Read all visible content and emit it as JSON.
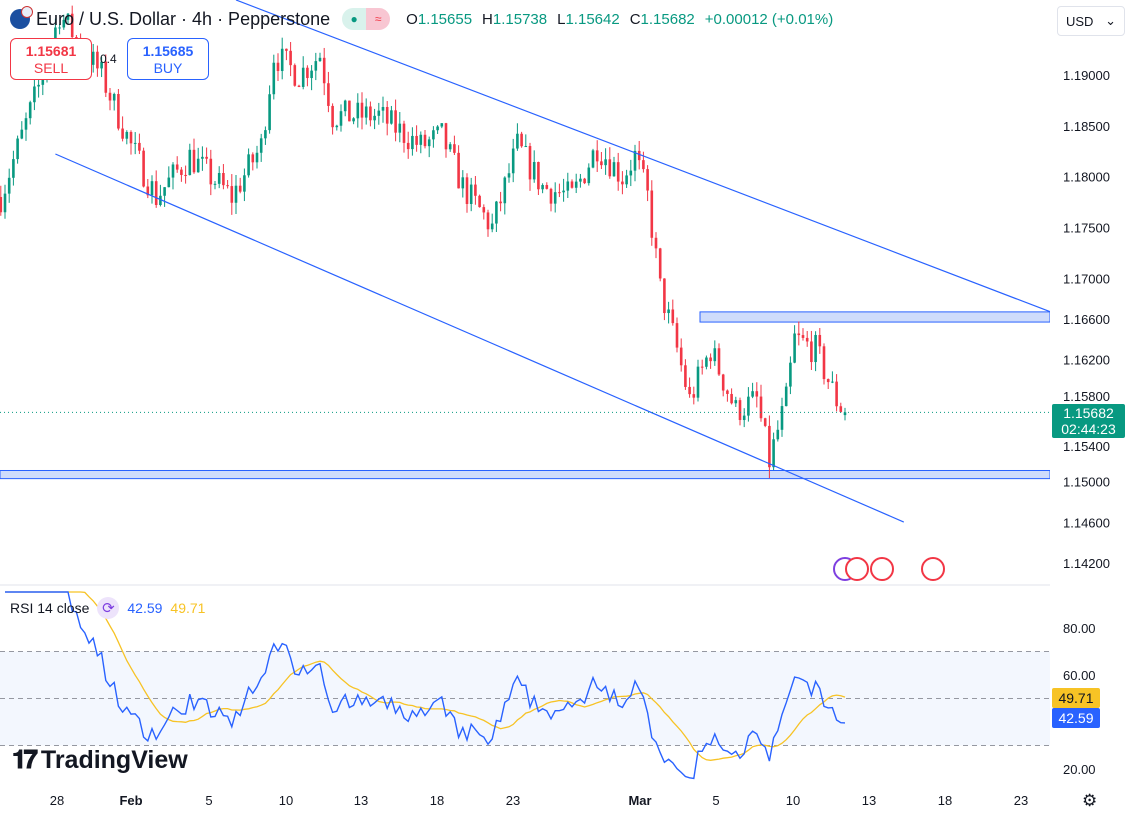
{
  "header": {
    "symbol": "Euro / U.S. Dollar · 4h · Pepperstone",
    "open_label": "O",
    "open": "1.15655",
    "high_label": "H",
    "high": "1.15738",
    "low_label": "L",
    "low": "1.15642",
    "close_label": "C",
    "close": "1.15682",
    "change": "+0.00012 (+0.01%)"
  },
  "trade": {
    "sell_price": "1.15681",
    "sell_label": "SELL",
    "buy_price": "1.15685",
    "buy_label": "BUY",
    "spread": "0.4"
  },
  "currency": "USD",
  "last_price": {
    "value": "1.15682",
    "countdown": "02:44:23"
  },
  "rsi": {
    "label": "RSI 14 close",
    "value": "42.59",
    "ma_value": "49.71",
    "axis": [
      "80.00",
      "60.00",
      "20.00"
    ]
  },
  "brand": "TradingView",
  "colors": {
    "up": "#089981",
    "down": "#f23645",
    "line": "#2962ff",
    "rsi": "#2962ff",
    "rsi_ma": "#f7c325"
  },
  "chart_data": {
    "type": "candlestick",
    "title": "Euro / U.S. Dollar · 4h · Pepperstone",
    "ylim": [
      1.142,
      1.198
    ],
    "price_ticks": [
      "1.19000",
      "1.18500",
      "1.18000",
      "1.17500",
      "1.17000",
      "1.16600",
      "1.16200",
      "1.15800",
      "1.15400",
      "1.15000",
      "1.14600",
      "1.14200"
    ],
    "time_ticks": [
      "28",
      "Feb",
      "5",
      "10",
      "13",
      "18",
      "23",
      "Mar",
      "5",
      "10",
      "13",
      "18",
      "23"
    ],
    "bars": 202,
    "approx_close_path": [
      [
        0,
        1.178
      ],
      [
        10,
        1.19
      ],
      [
        14,
        1.196
      ],
      [
        24,
        1.19
      ],
      [
        31,
        1.183
      ],
      [
        37,
        1.178
      ],
      [
        45,
        1.182
      ],
      [
        55,
        1.178
      ],
      [
        62,
        1.183
      ],
      [
        65,
        1.192
      ],
      [
        71,
        1.19
      ],
      [
        76,
        1.192
      ],
      [
        79,
        1.186
      ],
      [
        90,
        1.186
      ],
      [
        100,
        1.183
      ],
      [
        105,
        1.184
      ],
      [
        110,
        1.179
      ],
      [
        117,
        1.175
      ],
      [
        123,
        1.183
      ],
      [
        129,
        1.179
      ],
      [
        136,
        1.178
      ],
      [
        142,
        1.183
      ],
      [
        148,
        1.18
      ],
      [
        151,
        1.182
      ],
      [
        154,
        1.178
      ],
      [
        157,
        1.169
      ],
      [
        161,
        1.163
      ],
      [
        164,
        1.158
      ],
      [
        169,
        1.163
      ],
      [
        175,
        1.157
      ],
      [
        180,
        1.158
      ],
      [
        183,
        1.152
      ],
      [
        187,
        1.158
      ],
      [
        189,
        1.164
      ],
      [
        194,
        1.163
      ],
      [
        199,
        1.158
      ],
      [
        201,
        1.15682
      ]
    ],
    "channel_upper": [
      [
        56,
        1.19738
      ],
      [
        250,
        1.16669
      ]
    ],
    "channel_lower": [
      [
        13,
        1.18223
      ],
      [
        215,
        1.14603
      ]
    ],
    "resistance_zone": [
      1.1657,
      1.1667
    ],
    "support_zone": [
      1.1503,
      1.1511
    ]
  }
}
